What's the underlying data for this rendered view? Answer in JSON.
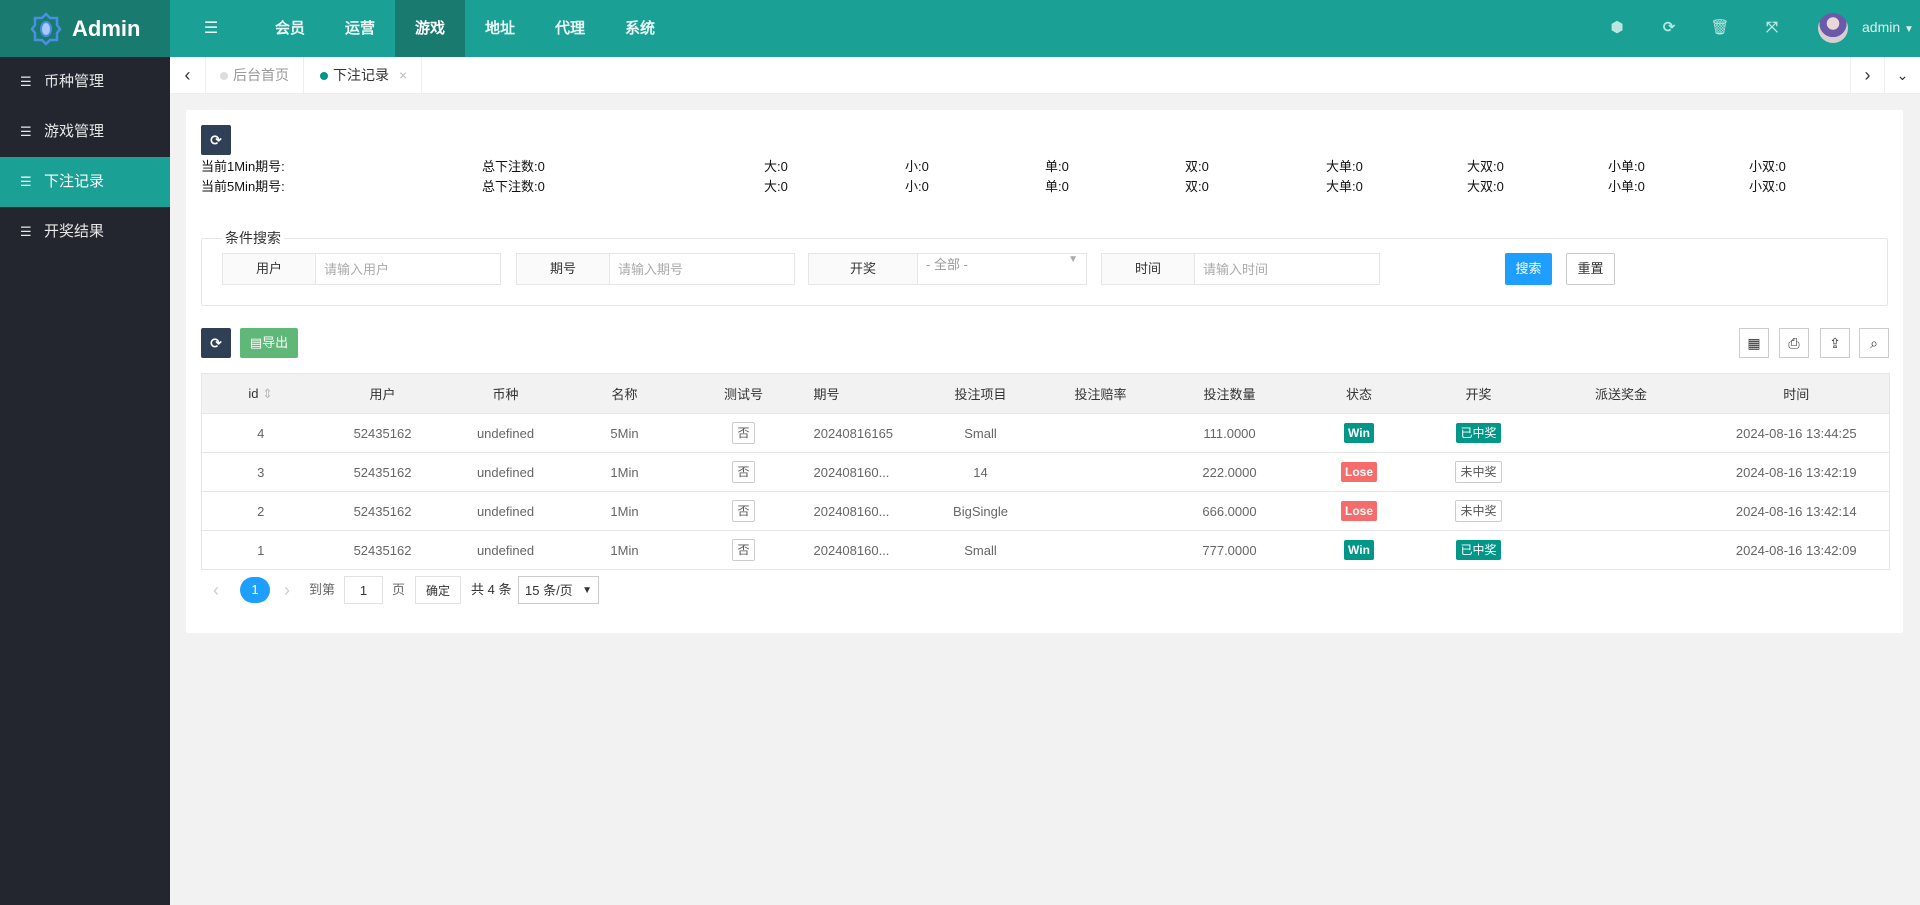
{
  "header": {
    "logo": "Admin",
    "nav": [
      "会员",
      "运营",
      "游戏",
      "地址",
      "代理",
      "系统"
    ],
    "active_nav": "游戏",
    "user": "admin"
  },
  "tabs": [
    {
      "label": "后台首页",
      "active": false
    },
    {
      "label": "下注记录",
      "active": true
    }
  ],
  "sidebar": {
    "items": [
      {
        "label": "币种管理"
      },
      {
        "label": "游戏管理"
      },
      {
        "label": "下注记录",
        "active": true
      },
      {
        "label": "开奖结果"
      }
    ]
  },
  "stats": [
    [
      "当前1Min期号:",
      "总下注数:0",
      "大:0",
      "小:0",
      "单:0",
      "双:0",
      "大单:0",
      "大双:0",
      "小单:0",
      "小双:0"
    ],
    [
      "当前5Min期号:",
      "总下注数:0",
      "大:0",
      "小:0",
      "单:0",
      "双:0",
      "大单:0",
      "大双:0",
      "小单:0",
      "小双:0"
    ]
  ],
  "search": {
    "legend": "条件搜索",
    "user": {
      "label": "用户",
      "placeholder": "请输入用户"
    },
    "period": {
      "label": "期号",
      "placeholder": "请输入期号"
    },
    "draw": {
      "label": "开奖",
      "value": "- 全部 -"
    },
    "time": {
      "label": "时间",
      "placeholder": "请输入时间"
    },
    "search_btn": "搜索",
    "reset_btn": "重置"
  },
  "toolbar": {
    "export": "导出"
  },
  "table": {
    "headers": [
      "id",
      "用户",
      "币种",
      "名称",
      "测试号",
      "期号",
      "投注项目",
      "投注赔率",
      "投注数量",
      "状态",
      "开奖",
      "派送奖金",
      "时间"
    ],
    "rows": [
      [
        "4",
        "52435162",
        "undefined",
        "5Min",
        "否",
        "20240816165",
        "Small",
        "",
        "111.0000",
        "Win",
        "已中奖",
        "",
        "2024-08-16 13:44:25"
      ],
      [
        "3",
        "52435162",
        "undefined",
        "1Min",
        "否",
        "202408160...",
        "14",
        "",
        "222.0000",
        "Lose",
        "未中奖",
        "",
        "2024-08-16 13:42:19"
      ],
      [
        "2",
        "52435162",
        "undefined",
        "1Min",
        "否",
        "202408160...",
        "BigSingle",
        "",
        "666.0000",
        "Lose",
        "未中奖",
        "",
        "2024-08-16 13:42:14"
      ],
      [
        "1",
        "52435162",
        "undefined",
        "1Min",
        "否",
        "202408160...",
        "Small",
        "",
        "777.0000",
        "Win",
        "已中奖",
        "",
        "2024-08-16 13:42:09"
      ]
    ]
  },
  "pagination": {
    "current": "1",
    "goto_label": "到第",
    "goto_value": "1",
    "page_label": "页",
    "confirm": "确定",
    "total": "共 4 条",
    "page_size": "15 条/页"
  },
  "colors": {
    "primary": "#1aa094",
    "sidebar": "#23262e",
    "win": "#009688",
    "lose": "#f56c6c",
    "search_btn": "#1e9fff"
  }
}
